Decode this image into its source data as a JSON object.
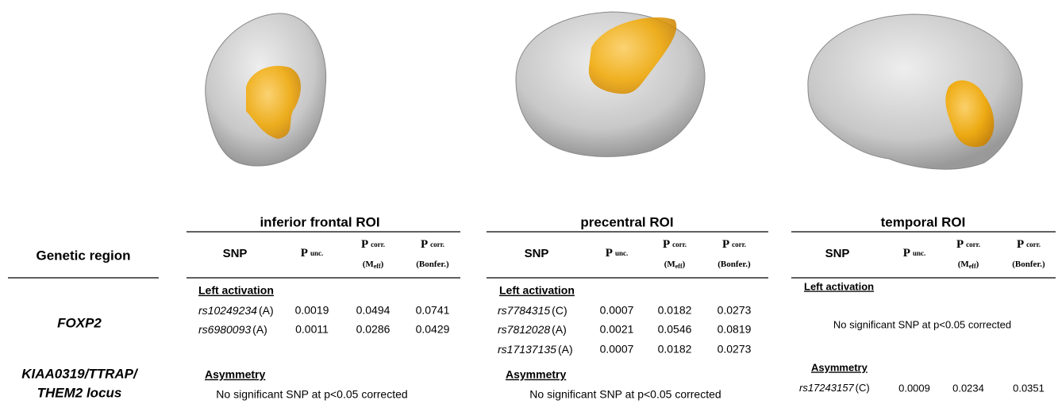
{
  "genetic_region_header": "Genetic region",
  "genetic_regions": [
    [
      "FOXP2"
    ],
    [
      "KIAA0319/TTRAP/",
      "THEM2 locus"
    ]
  ],
  "columns": [
    {
      "text": "SNP"
    },
    {
      "symbol": "P",
      "sub": "unc."
    },
    {
      "symbol": "P",
      "sub": "corr.",
      "note": "(M",
      "note_sub": "eff",
      "note_end": ")"
    },
    {
      "symbol": "P",
      "sub": "corr.",
      "note": "(Bonfer.)"
    }
  ],
  "rois": [
    {
      "title": "inferior frontal ROI",
      "left_activation": {
        "label": "Left activation",
        "rows": [
          {
            "snp": "rs10249234",
            "allele": "(A)",
            "p_unc": 0.0019,
            "p_corr_meff": 0.0494,
            "p_corr_bonfer": 0.0741
          },
          {
            "snp": "rs6980093",
            "allele": "(A)",
            "p_unc": 0.0011,
            "p_corr_meff": 0.0286,
            "p_corr_bonfer": 0.0429
          }
        ]
      },
      "asymmetry": {
        "label": "Asymmetry",
        "note": "No significant SNP at p<0.05 corrected"
      }
    },
    {
      "title": "precentral ROI",
      "left_activation": {
        "label": "Left activation",
        "rows": [
          {
            "snp": "rs7784315",
            "allele": "(C)",
            "p_unc": 0.0007,
            "p_corr_meff": 0.0182,
            "p_corr_bonfer": 0.0273
          },
          {
            "snp": "rs7812028",
            "allele": "(A)",
            "p_unc": 0.0021,
            "p_corr_meff": 0.0546,
            "p_corr_bonfer": 0.0819
          },
          {
            "snp": "rs17137135",
            "allele": "(A)",
            "p_unc": 0.0007,
            "p_corr_meff": 0.0182,
            "p_corr_bonfer": 0.0273
          }
        ]
      },
      "asymmetry": {
        "label": "Asymmetry",
        "note": "No significant SNP at p<0.05 corrected"
      }
    },
    {
      "title": "temporal ROI",
      "left_activation": {
        "label": "Left activation",
        "note": "No significant SNP at p<0.05 corrected"
      },
      "asymmetry": {
        "label": "Asymmetry",
        "rows": [
          {
            "snp": "rs17243157",
            "allele": "(C)",
            "p_unc": 0.0009,
            "p_corr_meff": 0.0234,
            "p_corr_bonfer": 0.0351
          }
        ]
      }
    }
  ]
}
